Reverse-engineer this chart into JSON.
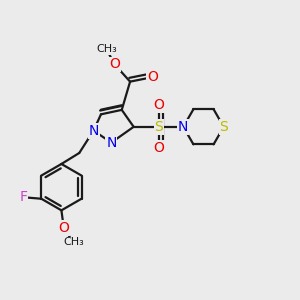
{
  "bg_color": "#ebebeb",
  "bond_color": "#1a1a1a",
  "bond_width": 1.6,
  "dbo": 0.013,
  "atom_colors": {
    "N": "#0000ee",
    "O": "#ee0000",
    "S": "#bbbb00",
    "F": "#cc44cc",
    "C": "#1a1a1a"
  },
  "font_size_atom": 10,
  "font_size_small": 8.5
}
